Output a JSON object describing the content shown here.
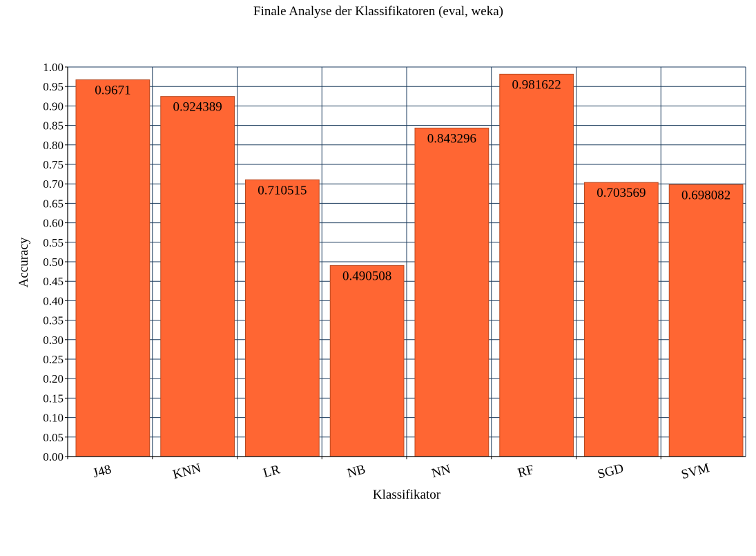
{
  "chart_data": {
    "type": "bar",
    "title": "Finale Analyse der Klassifikatoren (eval, weka)",
    "xlabel": "Klassifikator",
    "ylabel": "Accuracy",
    "categories": [
      "J48",
      "KNN",
      "LR",
      "NB",
      "NN",
      "RF",
      "SGD",
      "SVM"
    ],
    "values": [
      0.9671,
      0.924389,
      0.710515,
      0.490508,
      0.843296,
      0.981622,
      0.703569,
      0.698082
    ],
    "value_labels": [
      "0.9671",
      "0.924389",
      "0.710515",
      "0.490508",
      "0.843296",
      "0.981622",
      "0.703569",
      "0.698082"
    ],
    "y_ticks": [
      "0.00",
      "0.05",
      "0.10",
      "0.15",
      "0.20",
      "0.25",
      "0.30",
      "0.35",
      "0.40",
      "0.45",
      "0.50",
      "0.55",
      "0.60",
      "0.65",
      "0.70",
      "0.75",
      "0.80",
      "0.85",
      "0.90",
      "0.95",
      "1.00"
    ],
    "ylim": [
      0,
      1
    ],
    "grid": true,
    "bar_color": "#ff6633",
    "grid_color": "#1a3a5c"
  }
}
